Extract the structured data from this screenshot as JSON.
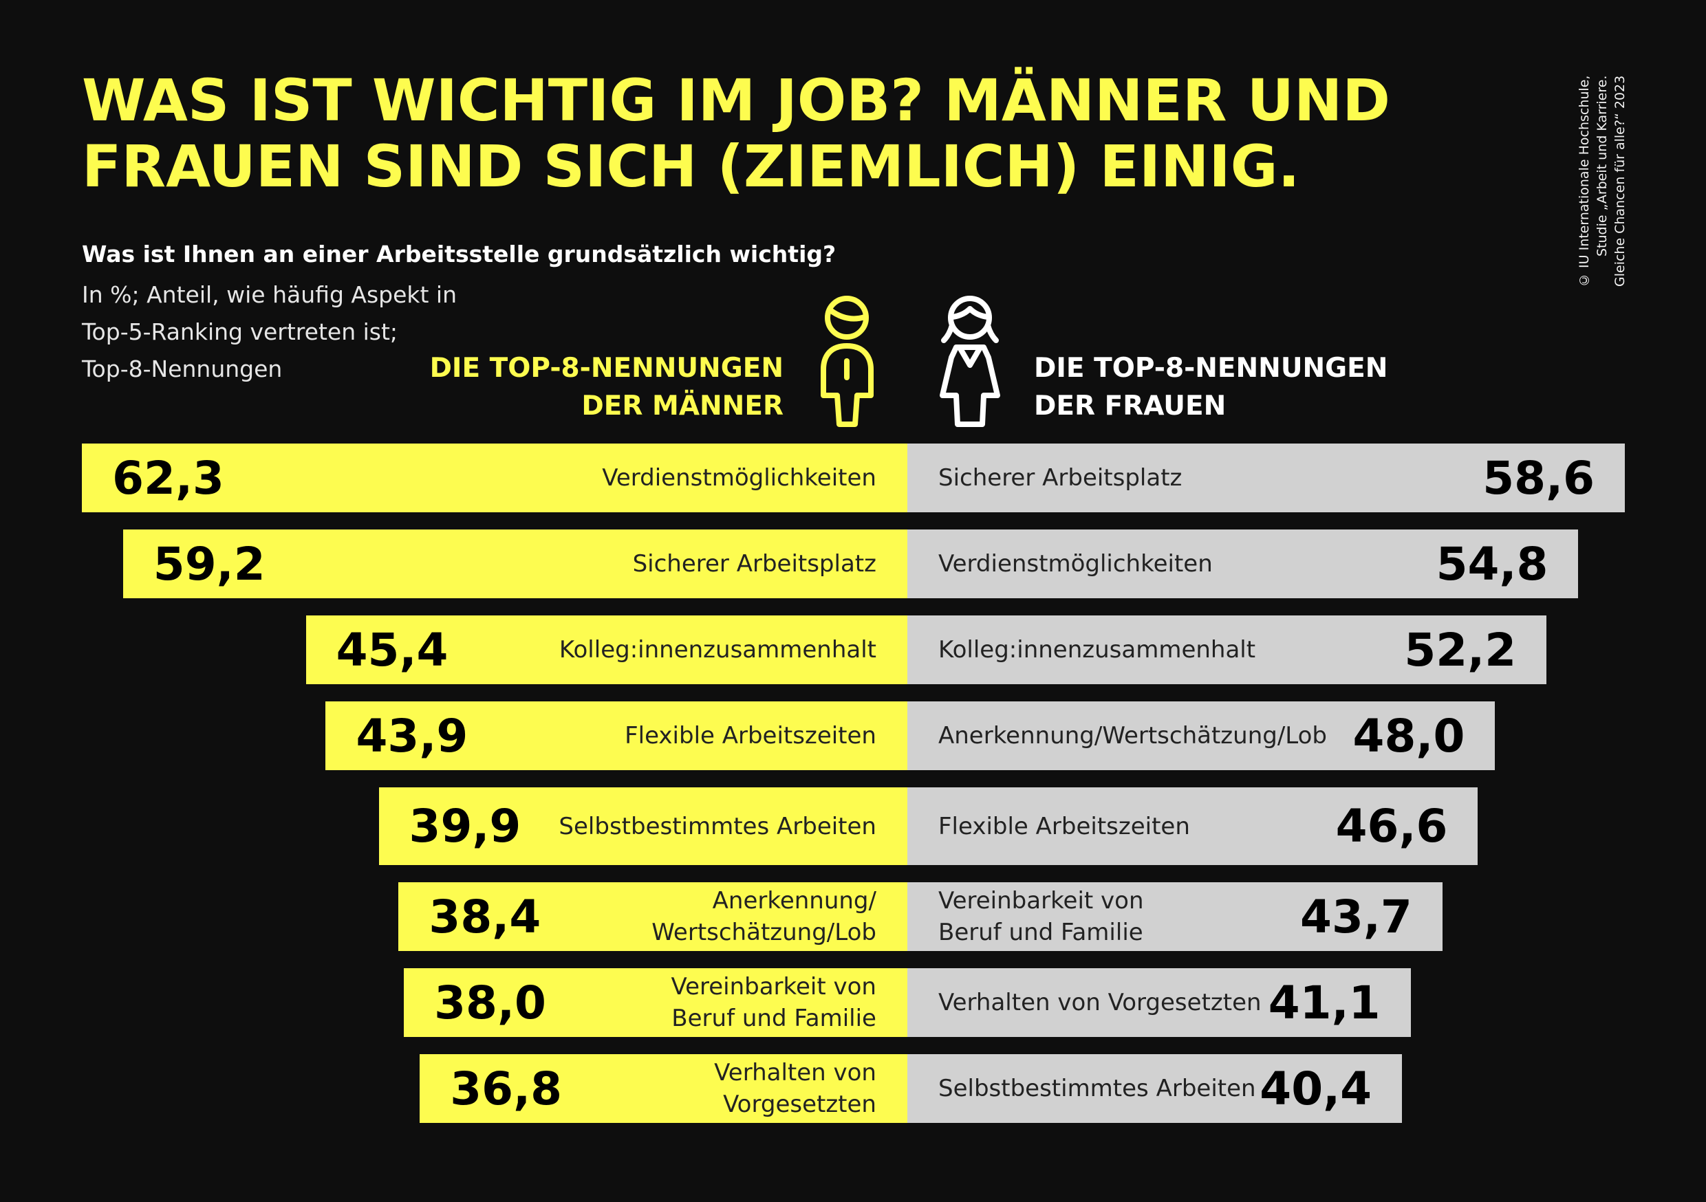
{
  "title": "WAS IST WICHTIG IM JOB? MÄNNER UND\nFRAUEN SIND SICH (ZIEMLICH) EINIG.",
  "title_lines": [
    "WAS IST WICHTIG IM JOB? MÄNNER UND",
    "FRAUEN SIND SICH (ZIEMLICH) EINIG."
  ],
  "question": "Was ist Ihnen an einer Arbeitsstelle grundsätzlich wichtig?",
  "subtitle_lines": [
    "In %; Anteil, wie häufig Aspekt in",
    "Top-5-Ranking vertreten ist;",
    "Top-8-Nennungen"
  ],
  "header_men": [
    "DIE TOP-8-NENNUNGEN",
    "DER MÄNNER"
  ],
  "header_women": [
    "DIE TOP-8-NENNUNGEN",
    "DER FRAUEN"
  ],
  "copyright_lines": [
    "© IU Internationale Hochschule,",
    "Studie „Arbeit und Karriere.",
    "Gleiche Chancen für alle?“ 2023"
  ],
  "icons": {
    "men": "man-icon",
    "women": "woman-icon"
  },
  "colors": {
    "background": "#0e0e0e",
    "men": "#fdfc50",
    "women": "#d1d1d1",
    "title": "#fdfc4f"
  },
  "chart_data": {
    "type": "bar",
    "orientation": "horizontal-diverging",
    "unit": "%",
    "series": [
      {
        "name": "DIE TOP-8-NENNUNGEN DER MÄNNER",
        "categories": [
          "Verdienstmöglichkeiten",
          "Sicherer Arbeitsplatz",
          "Kolleg:innenzusammenhalt",
          "Flexible Arbeitszeiten",
          "Selbstbestimmtes Arbeiten",
          "Anerkennung/\nWertschätzung/Lob",
          "Vereinbarkeit von\nBeruf und Familie",
          "Verhalten von Vorgesetzten"
        ],
        "values": [
          62.3,
          59.2,
          45.4,
          43.9,
          39.9,
          38.4,
          38.0,
          36.8
        ],
        "labels": [
          "62,3",
          "59,2",
          "45,4",
          "43,9",
          "39,9",
          "38,4",
          "38,0",
          "36,8"
        ]
      },
      {
        "name": "DIE TOP-8-NENNUNGEN DER FRAUEN",
        "categories": [
          "Sicherer Arbeitsplatz",
          "Verdienstmöglichkeiten",
          "Kolleg:innenzusammenhalt",
          "Anerkennung/Wertschätzung/Lob",
          "Flexible Arbeitszeiten",
          "Vereinbarkeit von\nBeruf und Familie",
          "Verhalten von Vorgesetzten",
          "Selbstbestimmtes Arbeiten"
        ],
        "values": [
          58.6,
          54.8,
          52.2,
          48.0,
          46.6,
          43.7,
          41.1,
          40.4
        ],
        "labels": [
          "58,6",
          "54,8",
          "52,2",
          "48,0",
          "46,6",
          "43,7",
          "41,1",
          "40,4"
        ]
      }
    ]
  }
}
